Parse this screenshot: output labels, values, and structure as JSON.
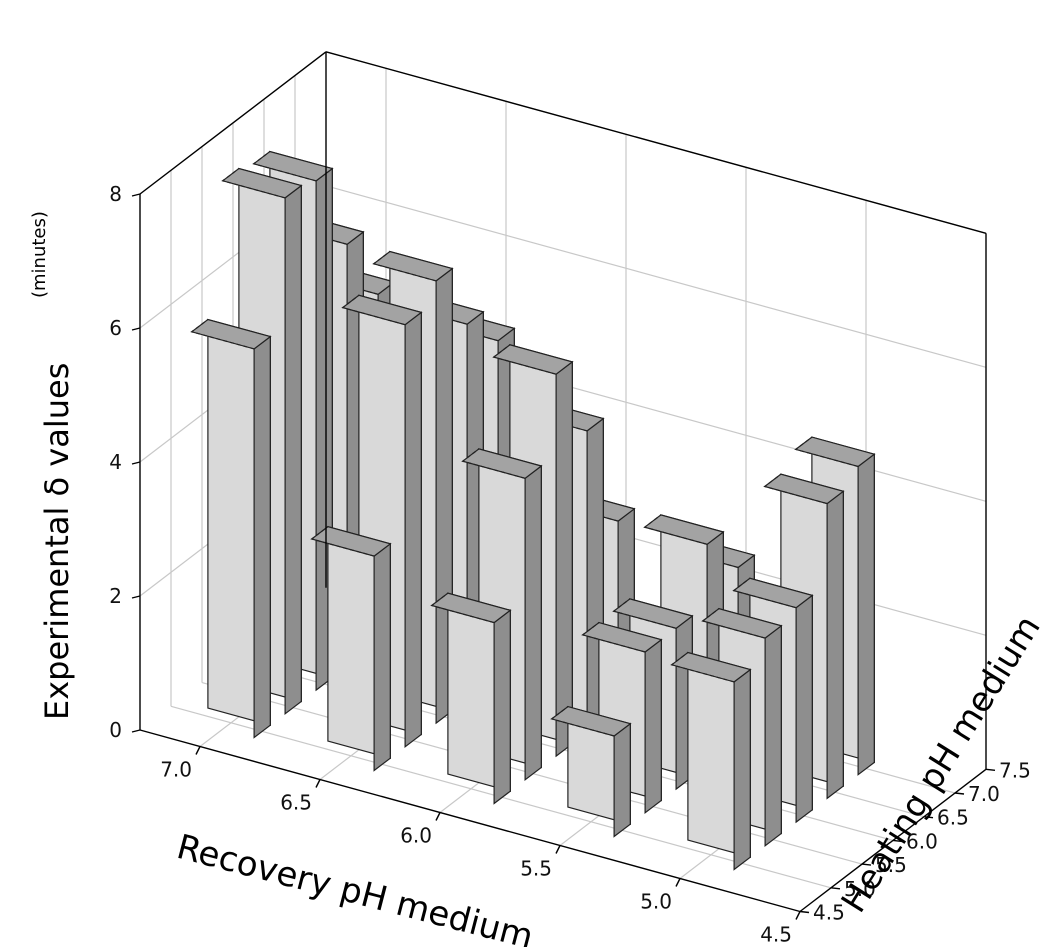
{
  "chart_data": {
    "type": "bar3d",
    "zlabel": "Experimental δ values",
    "zunit": "(minutes)",
    "xlabel": "Recovery pH medium",
    "ylabel": "Heating pH medium",
    "z_ticks": [
      "0",
      "2",
      "4",
      "6",
      "8"
    ],
    "x_ticks": [
      "7.0",
      "6.5",
      "6.0",
      "5.5",
      "5.0",
      "4.5"
    ],
    "y_ticks": [
      "4.5",
      "5.0",
      "5.5",
      "6.0",
      "6.5",
      "7.0",
      "7.5"
    ],
    "zlim": [
      0,
      8
    ],
    "recovery_pH": [
      7.0,
      6.5,
      6.0,
      5.5,
      5.0
    ],
    "heating_pH": [
      7.0,
      6.5,
      6.0,
      5.5,
      5.0
    ],
    "values": [
      [
        5.2,
        6.3,
        7.6,
        7.7,
        5.8
      ],
      [
        5.0,
        5.6,
        6.6,
        6.3,
        3.2
      ],
      [
        2.8,
        4.5,
        5.7,
        4.5,
        2.7
      ],
      [
        2.6,
        3.3,
        2.4,
        2.4,
        1.5
      ],
      [
        4.6,
        4.4,
        3.2,
        3.1,
        2.8
      ]
    ],
    "grid": true
  }
}
